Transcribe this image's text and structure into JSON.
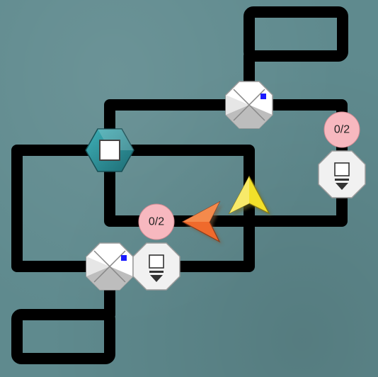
{
  "board": {
    "background_color": "#5f8a8e",
    "track_color": "#000000"
  },
  "counters": [
    {
      "id": "counter-right",
      "text": "0/2",
      "color": "#f7b8bf"
    },
    {
      "id": "counter-middle",
      "text": "0/2",
      "color": "#f7b8bf"
    }
  ],
  "pieces": {
    "hex_block_color": "#2e8a93",
    "arrow_yellow_color": "#f2e02a",
    "arrow_orange_color": "#ef6a2c",
    "switch_marker_color": "#1a1aff"
  }
}
